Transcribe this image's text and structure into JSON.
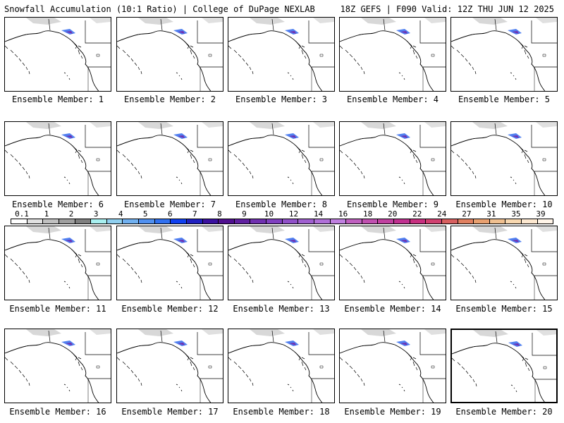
{
  "header": {
    "title": "Snowfall Accumulation (10:1 Ratio) | College of DuPage NEXLAB",
    "valid": "18Z GEFS | F090 Valid: 12Z THU JUN 12 2025"
  },
  "members": [
    {
      "label": "Ensemble Member: 1"
    },
    {
      "label": "Ensemble Member: 2"
    },
    {
      "label": "Ensemble Member: 3"
    },
    {
      "label": "Ensemble Member: 4"
    },
    {
      "label": "Ensemble Member: 5"
    },
    {
      "label": "Ensemble Member: 6"
    },
    {
      "label": "Ensemble Member: 7"
    },
    {
      "label": "Ensemble Member: 8"
    },
    {
      "label": "Ensemble Member: 9"
    },
    {
      "label": "Ensemble Member: 10"
    },
    {
      "label": "Ensemble Member: 11"
    },
    {
      "label": "Ensemble Member: 12"
    },
    {
      "label": "Ensemble Member: 13"
    },
    {
      "label": "Ensemble Member: 14"
    },
    {
      "label": "Ensemble Member: 15"
    },
    {
      "label": "Ensemble Member: 16"
    },
    {
      "label": "Ensemble Member: 17"
    },
    {
      "label": "Ensemble Member: 18"
    },
    {
      "label": "Ensemble Member: 19"
    },
    {
      "label": "Ensemble Member: 20"
    }
  ],
  "legend": {
    "ticks": [
      "0.1",
      "1",
      "2",
      "3",
      "4",
      "5",
      "6",
      "7",
      "8",
      "9",
      "10",
      "12",
      "14",
      "16",
      "18",
      "20",
      "22",
      "24",
      "27",
      "31",
      "35",
      "39"
    ],
    "colors": [
      "#ffffff",
      "#e0e0e0",
      "#c0c0c0",
      "#a0a0a0",
      "#808080",
      "#a8f0f0",
      "#90d0f0",
      "#70b0f0",
      "#5090f0",
      "#3070f0",
      "#1040f0",
      "#2020c0",
      "#3a10a0",
      "#501090",
      "#6020a0",
      "#7030b0",
      "#8040c0",
      "#9050c8",
      "#a060d0",
      "#b070d8",
      "#c080e0",
      "#c060c0",
      "#c050b0",
      "#c040a0",
      "#c03090",
      "#c83080",
      "#d04070",
      "#d86060",
      "#e08060",
      "#e8a070",
      "#f0c090",
      "#f8d8b0",
      "#fde8d0",
      "#fff4e8"
    ]
  },
  "selected_member": "Ensemble Member: 20"
}
